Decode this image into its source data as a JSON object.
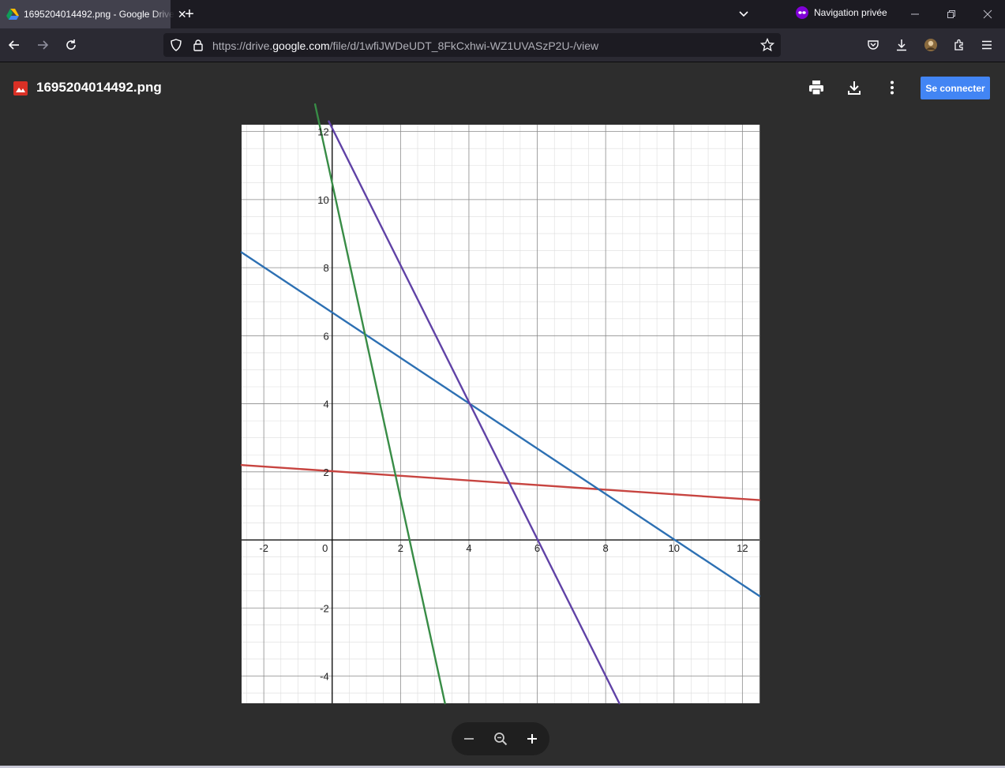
{
  "browser": {
    "tab_title": "1695204014492.png - Google Drive",
    "private_label": "Navigation privée",
    "url_prefix": "https://drive.",
    "url_domain": "google.com",
    "url_path": "/file/d/1wfiJWDeUDT_8FkCxhwi-WZ1UVASzP2U-/view"
  },
  "drive": {
    "file_name": "1695204014492.png",
    "signin_label": "Se connecter"
  },
  "chart_data": {
    "type": "line",
    "title": "",
    "xlabel": "",
    "ylabel": "",
    "xlim": [
      -2.65,
      12.5
    ],
    "ylim": [
      -4.8,
      12.2
    ],
    "grid": true,
    "minor_grid_step": 0.5,
    "x_ticks": [
      -2,
      0,
      2,
      4,
      6,
      8,
      10,
      12
    ],
    "y_ticks": [
      -4,
      -2,
      2,
      4,
      6,
      8,
      10,
      12
    ],
    "x_tick_labels": [
      "-2",
      "0",
      "2",
      "4",
      "6",
      "8",
      "10",
      "12"
    ],
    "y_tick_labels": [
      "-4",
      "-2",
      "2",
      "4",
      "6",
      "8",
      "10",
      "12"
    ],
    "series": [
      {
        "color": "#c74440",
        "x": [
          -2.65,
          12.5
        ],
        "y": [
          2.2,
          1.17
        ]
      },
      {
        "color": "#2d70b3",
        "x": [
          -2.65,
          12.5
        ],
        "y": [
          8.45,
          -1.65
        ]
      },
      {
        "color": "#388c46",
        "x": [
          -0.5,
          3.3
        ],
        "y": [
          12.8,
          -4.8
        ]
      },
      {
        "color": "#6042a6",
        "x": [
          -0.1,
          8.4
        ],
        "y": [
          12.3,
          -4.8
        ]
      }
    ]
  }
}
